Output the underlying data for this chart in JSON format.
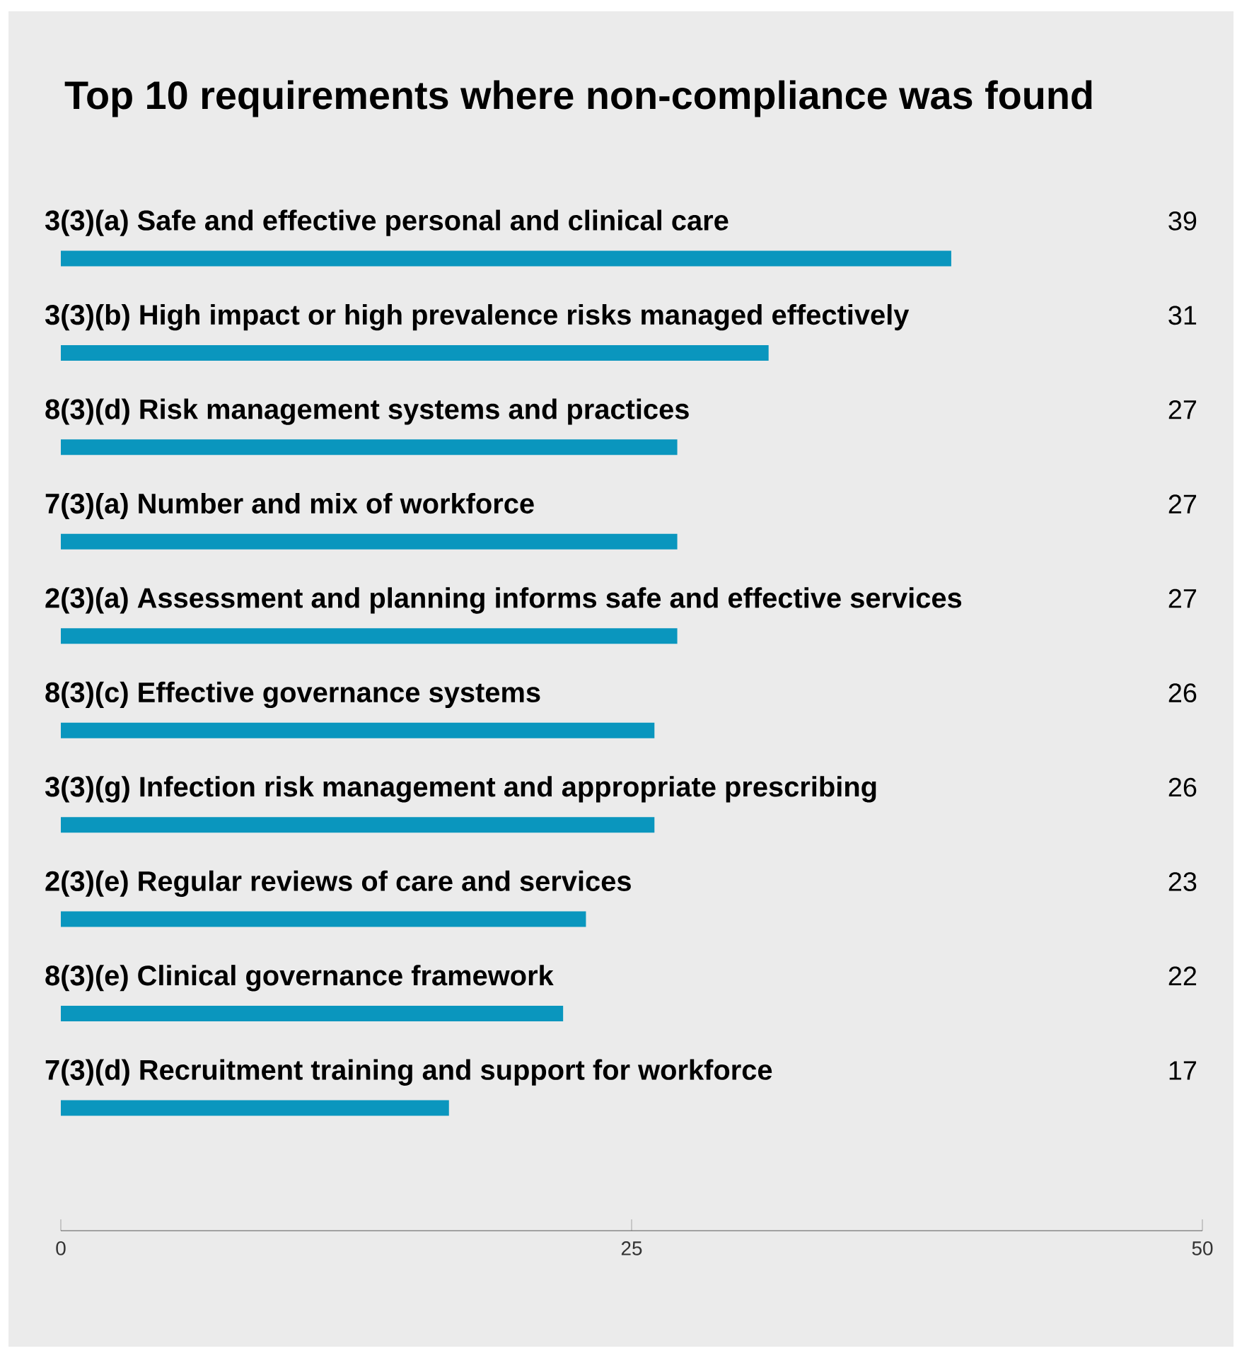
{
  "chart_data": {
    "type": "bar",
    "orientation": "horizontal",
    "title": "Top 10 requirements where non-compliance was found",
    "categories": [
      "3(3)(a) Safe and effective personal and clinical care",
      "3(3)(b) High impact or high prevalence risks managed effectively",
      "8(3)(d) Risk management systems and practices",
      "7(3)(a) Number and mix of workforce",
      "2(3)(a) Assessment and planning informs safe and effective services",
      "8(3)(c) Effective governance systems",
      "3(3)(g) Infection risk management and appropriate prescribing",
      "2(3)(e) Regular reviews of care and services",
      "8(3)(e) Clinical governance framework",
      "7(3)(d) Recruitment training and support for workforce"
    ],
    "values": [
      39,
      31,
      27,
      27,
      27,
      26,
      26,
      23,
      22,
      17
    ],
    "color": "#0a96be",
    "xlim": [
      0,
      50
    ],
    "xticks": [
      0,
      25,
      50
    ],
    "data_labels": true
  }
}
